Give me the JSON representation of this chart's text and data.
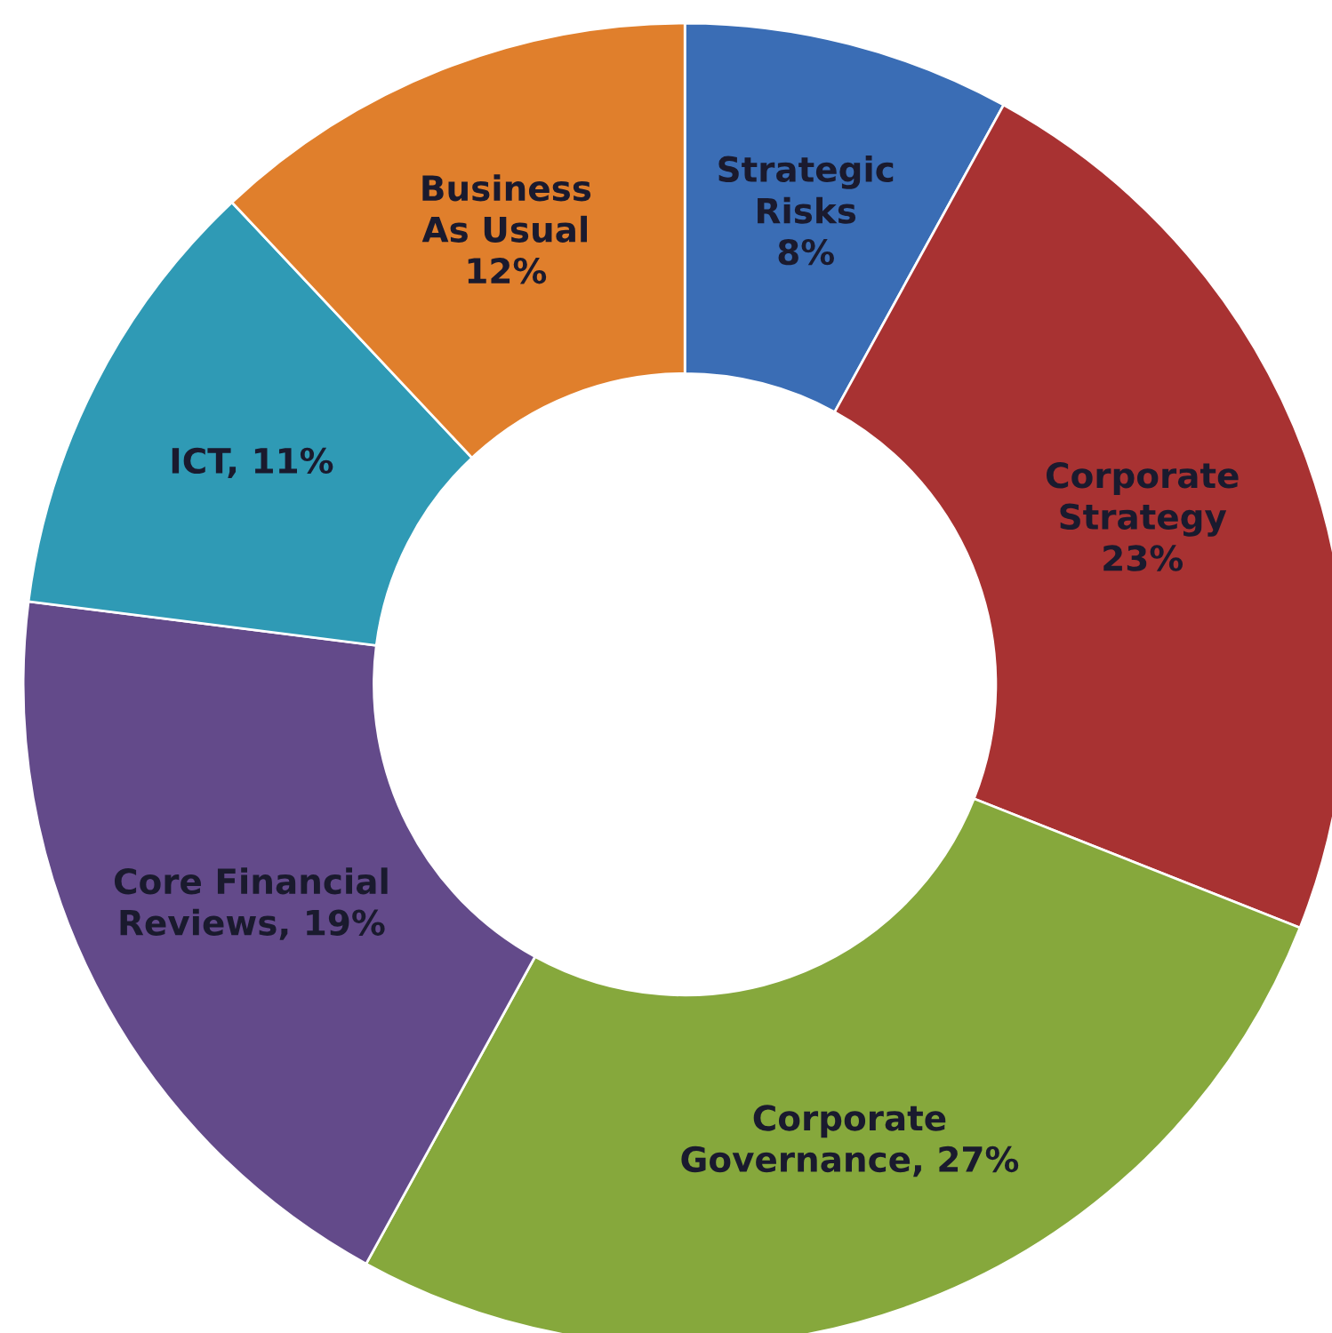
{
  "chart_data": {
    "type": "donut",
    "categories": [
      "Strategic\nRisks",
      "Corporate\nStrategy",
      "Corporate\nGovernance",
      "Core Financial\nReviews",
      "ICT",
      "Business\nAs Usual"
    ],
    "values": [
      8,
      23,
      27,
      19,
      11,
      12
    ],
    "colors": [
      "#3a6db5",
      "#a83232",
      "#86a83c",
      "#634a8a",
      "#2f9ab5",
      "#e07f2c"
    ],
    "value_labels": [
      "\n8%",
      "\n23%",
      ", 27%",
      ", 19%",
      ", 11%",
      "\n12%"
    ],
    "legend": false
  }
}
